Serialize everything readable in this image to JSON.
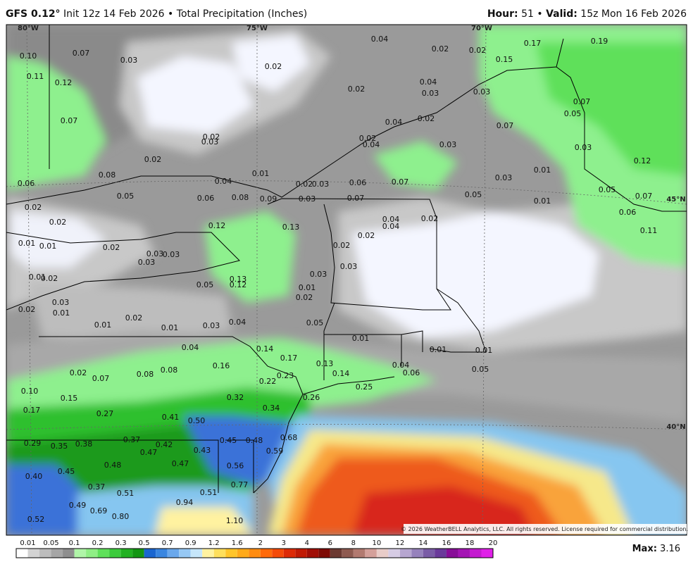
{
  "header": {
    "model": "GFS 0.12°",
    "init": "Init 12z 14 Feb 2026",
    "separator": "•",
    "product": "Total Precipitation (Inches)",
    "hour_label": "Hour:",
    "hour": "51",
    "valid_label": "Valid:",
    "valid": "15z Mon 16 Feb 2026"
  },
  "map": {
    "graticule_labels": [
      "80°W",
      "75°W",
      "70°W",
      "45°N",
      "40°N"
    ],
    "copyright": "© 2026 WeatherBELL Analytics, LLC. All rights reserved. License required for commercial distribution.",
    "precip_labels": [
      "0.10",
      "0.07",
      "0.03",
      "0.02",
      "0.04",
      "0.02",
      "0.02",
      "0.17",
      "0.19",
      "0.15",
      "0.11",
      "0.12",
      "0.02",
      "0.04",
      "0.03",
      "0.03",
      "0.07",
      "0.05",
      "0.07",
      "0.02",
      "0.03",
      "0.04",
      "0.02",
      "0.07",
      "0.02",
      "0.04",
      "0.03",
      "0.03",
      "0.12",
      "0.02",
      "0.08",
      "0.01",
      "0.04",
      "0.02",
      "0.03",
      "0.06",
      "0.07",
      "0.01",
      "0.03",
      "0.06",
      "0.05",
      "0.06",
      "0.08",
      "0.09",
      "0.03",
      "0.07",
      "0.05",
      "0.01",
      "0.05",
      "0.07",
      "0.06",
      "0.02",
      "0.02",
      "0.12",
      "0.13",
      "0.04",
      "0.04",
      "0.02",
      "0.02",
      "0.11",
      "0.01",
      "0.01",
      "0.02",
      "0.03",
      "0.03",
      "0.03",
      "0.02",
      "0.03",
      "0.01",
      "0.02",
      "0.03",
      "0.13",
      "0.12",
      "0.05",
      "0.01",
      "0.02",
      "0.03",
      "0.01",
      "0.02",
      "0.01",
      "0.02",
      "0.01",
      "0.03",
      "0.04",
      "0.05",
      "0.01",
      "0.04",
      "0.14",
      "0.17",
      "0.13",
      "0.01",
      "0.01",
      "0.16",
      "0.08",
      "0.08",
      "0.02",
      "0.07",
      "0.04",
      "0.06",
      "0.05",
      "0.14",
      "0.22",
      "0.23",
      "0.25",
      "0.10",
      "0.15",
      "0.26",
      "0.32",
      "0.34",
      "0.17",
      "0.27",
      "0.41",
      "0.50",
      "0.29",
      "0.35",
      "0.38",
      "0.37",
      "0.45",
      "0.48",
      "0.68",
      "0.42",
      "0.47",
      "0.43",
      "0.59",
      "0.45",
      "0.48",
      "0.47",
      "0.56",
      "0.40",
      "0.37",
      "0.51",
      "0.77",
      "0.49",
      "0.69",
      "0.51",
      "0.94",
      "0.80",
      "0.52",
      "1.10"
    ]
  },
  "colorbar": {
    "labels": [
      "0.01",
      "0.05",
      "0.1",
      "0.2",
      "0.3",
      "0.5",
      "0.7",
      "0.9",
      "1.2",
      "1.6",
      "2",
      "3",
      "4",
      "6",
      "8",
      "10",
      "12",
      "14",
      "16",
      "18",
      "20"
    ],
    "colors": [
      "#ffffff",
      "#d3d3d3",
      "#bcbcbc",
      "#a5a5a5",
      "#8e8e8e",
      "#b0f5a8",
      "#8fee85",
      "#5fe05a",
      "#3ccb3c",
      "#22b122",
      "#139613",
      "#1a66d0",
      "#3a86e0",
      "#6aa8ec",
      "#96c8f4",
      "#c6e6fa",
      "#fff2a0",
      "#fedf5c",
      "#ffc52a",
      "#ffaa1a",
      "#ff8c10",
      "#ff6a0a",
      "#f44a08",
      "#dd2a06",
      "#c01a04",
      "#a00e06",
      "#7e0a04",
      "#6c3a32",
      "#8e5a50",
      "#b27a70",
      "#d4a09a",
      "#e8ccc8",
      "#d6cce4",
      "#b6a6d0",
      "#9682bc",
      "#7a5ca6",
      "#6a3a9a",
      "#880e98",
      "#a414b4",
      "#c41ad0",
      "#e020e8"
    ],
    "max_label": "Max:",
    "max": "3.16"
  }
}
